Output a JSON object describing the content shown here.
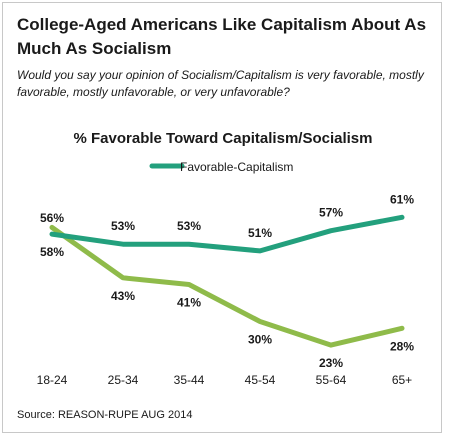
{
  "title": "College-Aged Americans Like Capitalism About As Much As Socialism",
  "question": "Would you say your opinion of Socialism/Capitalism is very favorable, mostly favorable, mostly unfavorable, or very unfavorable?",
  "source": "Source: REASON-RUPE AUG 2014",
  "chart_data": {
    "type": "line",
    "title": "% Favorable Toward Capitalism/Socialism",
    "xlabel": "",
    "ylabel": "",
    "categories": [
      "18-24",
      "25-34",
      "35-44",
      "45-54",
      "55-64",
      "65+"
    ],
    "series": [
      {
        "name": "Favorable-Capitalism",
        "color": "#23a07d",
        "values": [
          56,
          53,
          53,
          51,
          57,
          61
        ],
        "labels": [
          "56%",
          "53%",
          "53%",
          "51%",
          "57%",
          "61%"
        ]
      },
      {
        "name": "",
        "color": "#8fbb4a",
        "values": [
          58,
          43,
          41,
          30,
          23,
          28
        ],
        "labels": [
          "58%",
          "43%",
          "41%",
          "30%",
          "23%",
          "28%"
        ]
      }
    ],
    "ylim": [
      15,
      70
    ],
    "grid": false,
    "legend": "top-center"
  }
}
